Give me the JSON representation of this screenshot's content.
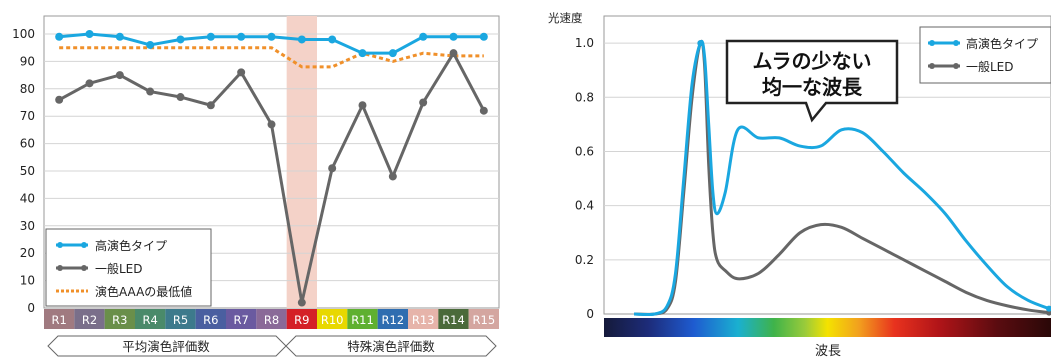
{
  "chart_data": [
    {
      "type": "line",
      "categories": [
        "R1",
        "R2",
        "R3",
        "R4",
        "R5",
        "R6",
        "R7",
        "R8",
        "R9",
        "R10",
        "R11",
        "R12",
        "R13",
        "R14",
        "R15"
      ],
      "category_colors": [
        "#a07a80",
        "#7a6f8a",
        "#6a8f4a",
        "#4a8a6a",
        "#3d7a8c",
        "#4a5fa0",
        "#6a5aa0",
        "#8a6a98",
        "#d42027",
        "#e8d800",
        "#5fb030",
        "#2f6db0",
        "#e6b4aa",
        "#4a6a3a",
        "#d4a6a0"
      ],
      "ylim": [
        0,
        100
      ],
      "yticks": [
        0,
        10,
        20,
        30,
        40,
        50,
        60,
        70,
        80,
        90,
        100
      ],
      "grid": true,
      "highlight_category": "R9",
      "highlight_color": "#f4d2c8",
      "legend_position": "bottom-left",
      "series": [
        {
          "name": "高演色タイプ",
          "color": "#1aa7e0",
          "style": "solid",
          "marker": true,
          "values": [
            99,
            100,
            99,
            96,
            98,
            99,
            99,
            99,
            98,
            98,
            93,
            93,
            99,
            99,
            99
          ]
        },
        {
          "name": "一般LED",
          "color": "#666666",
          "style": "solid",
          "marker": true,
          "values": [
            76,
            82,
            85,
            79,
            77,
            74,
            86,
            67,
            2,
            51,
            74,
            48,
            75,
            93,
            72
          ]
        },
        {
          "name": "演色AAAの最低値",
          "color": "#f0902a",
          "style": "dotted",
          "marker": false,
          "values": [
            95,
            95,
            95,
            95,
            95,
            95,
            95,
            95,
            88,
            88,
            93,
            90,
            93,
            92,
            92
          ]
        }
      ],
      "groups": [
        {
          "label": "平均演色評価数"
        },
        {
          "label": "特殊演色評価数"
        }
      ]
    },
    {
      "type": "line",
      "ylabel": "光速度",
      "xlabel": "波長",
      "ylim": [
        0,
        1.1
      ],
      "yticks": [
        0,
        0.2,
        0.4,
        0.6,
        0.8,
        1.0
      ],
      "ytick_labels": [
        "0",
        "0.2",
        "0.4",
        "0.6",
        "0.8",
        "1.0"
      ],
      "grid": true,
      "legend_position": "top-right",
      "annotation": {
        "line1": "ムラの少ない",
        "line2": "均一な波長"
      },
      "x": [
        0,
        0.05,
        0.08,
        0.1,
        0.12,
        0.14,
        0.16,
        0.17,
        0.18,
        0.19,
        0.2,
        0.22,
        0.25,
        0.3,
        0.35,
        0.4,
        0.45,
        0.5,
        0.55,
        0.6,
        0.65,
        0.7,
        0.75,
        0.8,
        0.85,
        0.9,
        0.95,
        1.0
      ],
      "series": [
        {
          "name": "高演色タイプ",
          "color": "#1aa7e0",
          "marker": true,
          "values": [
            0,
            0,
            0.03,
            0.15,
            0.5,
            0.85,
            1.0,
            0.95,
            0.7,
            0.45,
            0.37,
            0.45,
            0.68,
            0.65,
            0.65,
            0.62,
            0.62,
            0.68,
            0.67,
            0.6,
            0.52,
            0.45,
            0.37,
            0.27,
            0.18,
            0.1,
            0.05,
            0.02
          ]
        },
        {
          "name": "一般LED",
          "color": "#666666",
          "marker": true,
          "values": [
            0,
            0,
            0.02,
            0.12,
            0.45,
            0.8,
            1.0,
            0.92,
            0.55,
            0.3,
            0.2,
            0.16,
            0.13,
            0.15,
            0.22,
            0.3,
            0.33,
            0.32,
            0.28,
            0.24,
            0.2,
            0.16,
            0.12,
            0.08,
            0.05,
            0.03,
            0.015,
            0.005
          ]
        }
      ]
    }
  ]
}
